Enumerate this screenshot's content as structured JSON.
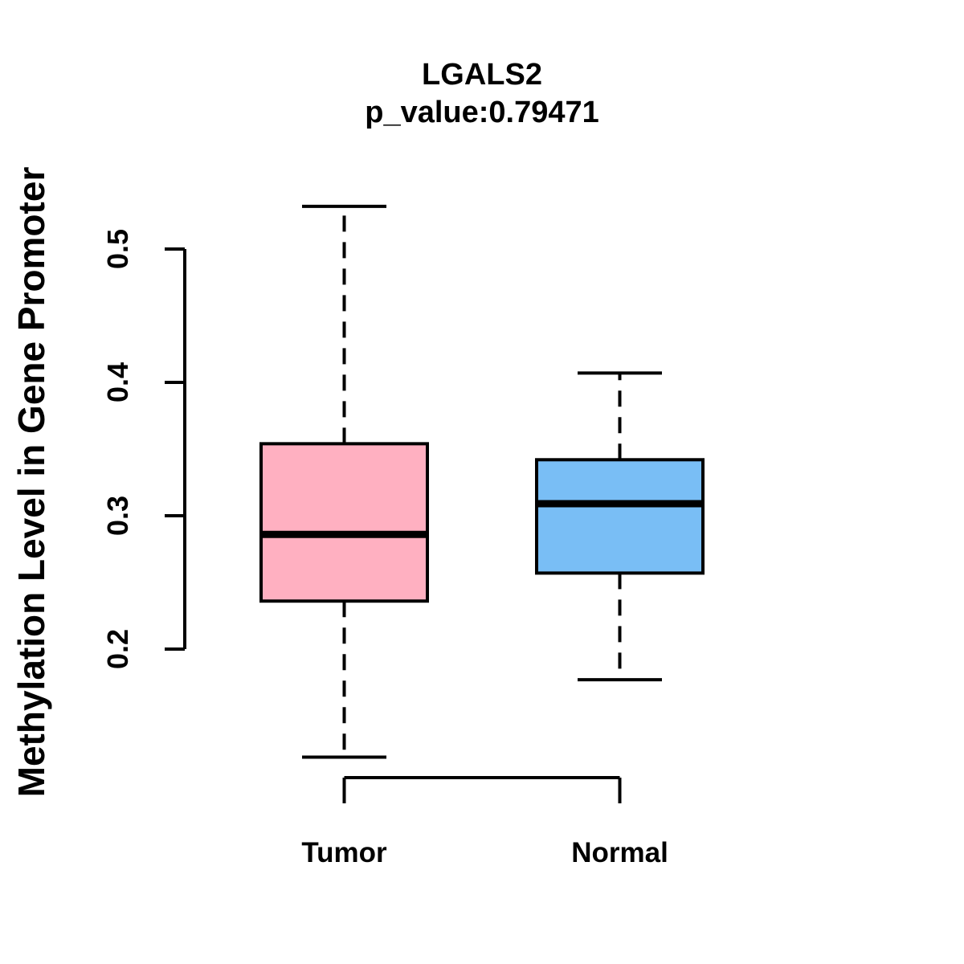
{
  "chart_data": {
    "type": "box",
    "title": "LGALS2",
    "subtitle": "p_value:0.79471",
    "ylabel": "Methylation Level in Gene Promoter",
    "xlabel": "",
    "categories": [
      "Tumor",
      "Normal"
    ],
    "y_ticks": [
      0.2,
      0.3,
      0.4,
      0.5
    ],
    "y_tick_labels": [
      "0.2",
      "0.3",
      "0.4",
      "0.5"
    ],
    "ylim_shown": [
      0.119,
      0.532
    ],
    "grid": false,
    "legend": "none",
    "series": [
      {
        "name": "Tumor",
        "color": "#ffb0c1",
        "whisker_low": 0.119,
        "q1": 0.236,
        "median": 0.286,
        "q3": 0.354,
        "whisker_high": 0.532
      },
      {
        "name": "Normal",
        "color": "#79bef5",
        "whisker_low": 0.177,
        "q1": 0.257,
        "median": 0.309,
        "q3": 0.342,
        "whisker_high": 0.407
      }
    ],
    "style": {
      "line_color": "#000000",
      "background": "#ffffff",
      "whisker_style": "dashed"
    }
  }
}
